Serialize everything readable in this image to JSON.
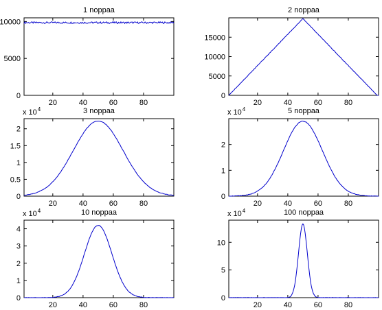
{
  "chart_data": [
    {
      "type": "line",
      "title": "1 noppaa",
      "xlim": [
        1,
        100
      ],
      "ylim": [
        0,
        10500
      ],
      "xticks": [
        20,
        40,
        60,
        80
      ],
      "yticks": [
        0,
        5000,
        10000
      ],
      "ytick_labels": [
        "0",
        "5000",
        "10000"
      ],
      "y_multiplier": "",
      "color": "#0000cc",
      "curve": {
        "kind": "flat",
        "center": 50,
        "peak": 9850,
        "noise": 120
      }
    },
    {
      "type": "line",
      "title": "2 noppaa",
      "xlim": [
        1,
        100
      ],
      "ylim": [
        0,
        20000
      ],
      "xticks": [
        20,
        40,
        60,
        80
      ],
      "yticks": [
        0,
        5000,
        10000,
        15000
      ],
      "ytick_labels": [
        "0",
        "5000",
        "10000",
        "15000"
      ],
      "y_multiplier": "",
      "color": "#0000cc",
      "curve": {
        "kind": "triangle",
        "center": 50,
        "peak": 19800,
        "halfwidth": 49
      }
    },
    {
      "type": "line",
      "title": "3 noppaa",
      "xlim": [
        1,
        100
      ],
      "ylim": [
        0,
        23000
      ],
      "xticks": [
        20,
        40,
        60,
        80
      ],
      "yticks": [
        0,
        5000,
        10000,
        15000,
        20000
      ],
      "ytick_labels": [
        "0",
        "0.5",
        "1",
        "1.5",
        "2"
      ],
      "y_multiplier": "x 10",
      "y_multiplier_exp": "4",
      "color": "#0000cc",
      "curve": {
        "kind": "gauss",
        "center": 50,
        "peak": 22300,
        "sigma": 16.5
      }
    },
    {
      "type": "line",
      "title": "5 noppaa",
      "xlim": [
        1,
        100
      ],
      "ylim": [
        0,
        30000
      ],
      "xticks": [
        20,
        40,
        60,
        80
      ],
      "yticks": [
        0,
        10000,
        20000
      ],
      "ytick_labels": [
        "0",
        "1",
        "2"
      ],
      "y_multiplier": "x 10",
      "y_multiplier_exp": "4",
      "color": "#0000cc",
      "curve": {
        "kind": "gauss",
        "center": 50,
        "peak": 29000,
        "sigma": 12.9
      }
    },
    {
      "type": "line",
      "title": "10 noppaa",
      "xlim": [
        1,
        100
      ],
      "ylim": [
        0,
        45000
      ],
      "xticks": [
        20,
        40,
        60,
        80
      ],
      "yticks": [
        0,
        10000,
        20000,
        30000,
        40000
      ],
      "ytick_labels": [
        "0",
        "1",
        "2",
        "3",
        "4"
      ],
      "y_multiplier": "x 10",
      "y_multiplier_exp": "4",
      "color": "#0000cc",
      "curve": {
        "kind": "gauss",
        "center": 50,
        "peak": 42000,
        "sigma": 9.1
      }
    },
    {
      "type": "line",
      "title": "100 noppaa",
      "xlim": [
        1,
        100
      ],
      "ylim": [
        0,
        140000
      ],
      "xticks": [
        20,
        40,
        60,
        80
      ],
      "yticks": [
        0,
        50000,
        100000
      ],
      "ytick_labels": [
        "0",
        "5",
        "10"
      ],
      "y_multiplier": "x 10",
      "y_multiplier_exp": "4",
      "color": "#0000cc",
      "curve": {
        "kind": "gauss",
        "center": 50,
        "peak": 133000,
        "sigma": 2.9
      }
    }
  ]
}
